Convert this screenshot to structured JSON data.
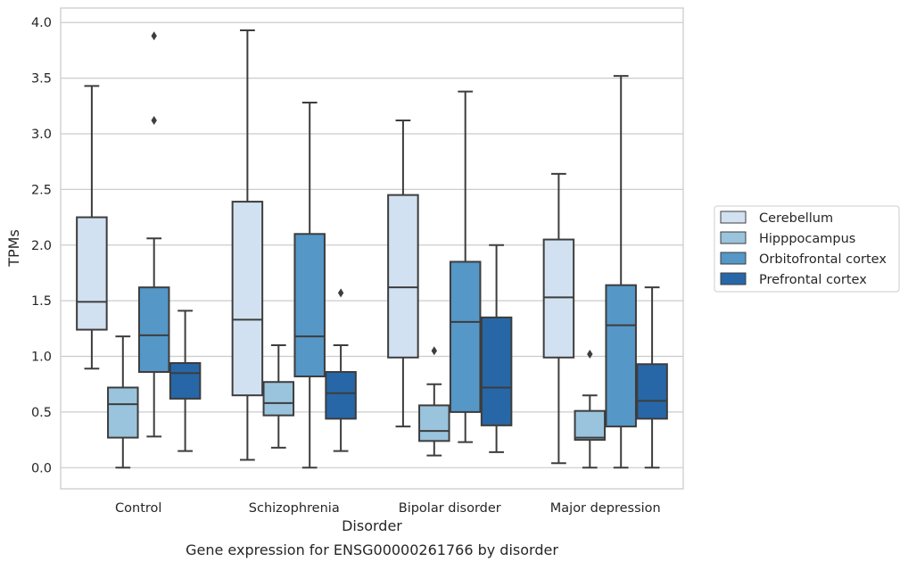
{
  "chart_data": {
    "type": "box",
    "title": "",
    "caption": "Gene expression for ENSG00000261766 by disorder",
    "xlabel": "Disorder",
    "ylabel": "TPMs",
    "ylim": [
      -0.19,
      4.13
    ],
    "yticks": [
      "0.0",
      "0.5",
      "1.0",
      "1.5",
      "2.0",
      "2.5",
      "3.0",
      "3.5",
      "4.0"
    ],
    "grid": "horizontal",
    "legend_position": "right",
    "categories": [
      "Control",
      "Schizophrenia",
      "Bipolar disorder",
      "Major depression"
    ],
    "series": [
      {
        "name": "Cerebellum",
        "color": "#d2e1f1",
        "boxes": [
          {
            "low": 0.89,
            "q1": 1.24,
            "median": 1.49,
            "q3": 2.25,
            "high": 3.43,
            "outliers": []
          },
          {
            "low": 0.07,
            "q1": 0.65,
            "median": 1.33,
            "q3": 2.39,
            "high": 3.93,
            "outliers": []
          },
          {
            "low": 0.37,
            "q1": 0.99,
            "median": 1.62,
            "q3": 2.45,
            "high": 3.12,
            "outliers": []
          },
          {
            "low": 0.04,
            "q1": 0.99,
            "median": 1.53,
            "q3": 2.05,
            "high": 2.64,
            "outliers": []
          }
        ]
      },
      {
        "name": "Hipppocampus",
        "color": "#9ac4dd",
        "boxes": [
          {
            "low": 0.0,
            "q1": 0.27,
            "median": 0.57,
            "q3": 0.72,
            "high": 1.18,
            "outliers": []
          },
          {
            "low": 0.18,
            "q1": 0.47,
            "median": 0.58,
            "q3": 0.77,
            "high": 1.1,
            "outliers": []
          },
          {
            "low": 0.11,
            "q1": 0.24,
            "median": 0.33,
            "q3": 0.56,
            "high": 0.75,
            "outliers": [
              1.05
            ]
          },
          {
            "low": 0.0,
            "q1": 0.25,
            "median": 0.27,
            "q3": 0.51,
            "high": 0.65,
            "outliers": [
              1.02
            ]
          }
        ]
      },
      {
        "name": "Orbitofrontal cortex",
        "color": "#5597c7",
        "boxes": [
          {
            "low": 0.28,
            "q1": 0.86,
            "median": 1.19,
            "q3": 1.62,
            "high": 2.06,
            "outliers": [
              3.12,
              3.88
            ]
          },
          {
            "low": 0.0,
            "q1": 0.82,
            "median": 1.18,
            "q3": 2.1,
            "high": 3.28,
            "outliers": []
          },
          {
            "low": 0.23,
            "q1": 0.5,
            "median": 1.31,
            "q3": 1.85,
            "high": 3.38,
            "outliers": []
          },
          {
            "low": 0.0,
            "q1": 0.37,
            "median": 1.28,
            "q3": 1.64,
            "high": 3.52,
            "outliers": []
          }
        ]
      },
      {
        "name": "Prefrontal cortex",
        "color": "#2767a7",
        "boxes": [
          {
            "low": 0.15,
            "q1": 0.62,
            "median": 0.85,
            "q3": 0.94,
            "high": 1.41,
            "outliers": []
          },
          {
            "low": 0.15,
            "q1": 0.44,
            "median": 0.67,
            "q3": 0.86,
            "high": 1.1,
            "outliers": [
              1.57
            ]
          },
          {
            "low": 0.14,
            "q1": 0.38,
            "median": 0.72,
            "q3": 1.35,
            "high": 2.0,
            "outliers": []
          },
          {
            "low": 0.0,
            "q1": 0.44,
            "median": 0.6,
            "q3": 0.93,
            "high": 1.62,
            "outliers": []
          }
        ]
      }
    ]
  }
}
